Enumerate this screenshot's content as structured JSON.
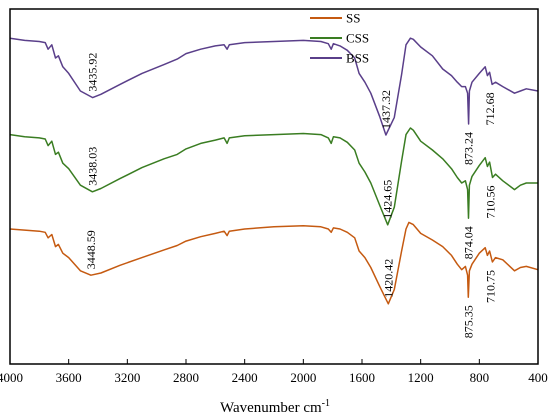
{
  "chart_data": {
    "type": "line",
    "xlabel": "Wavenumber cm",
    "xlabel_sup": "-1",
    "xlim": [
      4000,
      400
    ],
    "x_reversed": true,
    "xticks": [
      4000,
      3600,
      3200,
      2800,
      2400,
      2000,
      1600,
      1200,
      800,
      400
    ],
    "y_axis_shown": false,
    "grid": false,
    "legend_position": "top-center",
    "series": [
      {
        "name": "SS",
        "color": "#c55a11",
        "offset": 0,
        "points": [
          [
            4000,
            0.3
          ],
          [
            3900,
            0.29
          ],
          [
            3800,
            0.28
          ],
          [
            3760,
            0.27
          ],
          [
            3740,
            0.22
          ],
          [
            3715,
            0.25
          ],
          [
            3690,
            0.14
          ],
          [
            3670,
            0.16
          ],
          [
            3640,
            0.08
          ],
          [
            3600,
            0.04
          ],
          [
            3520,
            -0.08
          ],
          [
            3448.59,
            -0.12
          ],
          [
            3380,
            -0.1
          ],
          [
            3250,
            -0.03
          ],
          [
            3100,
            0.04
          ],
          [
            2950,
            0.11
          ],
          [
            2860,
            0.15
          ],
          [
            2800,
            0.19
          ],
          [
            2700,
            0.23
          ],
          [
            2600,
            0.26
          ],
          [
            2540,
            0.28
          ],
          [
            2520,
            0.24
          ],
          [
            2505,
            0.28
          ],
          [
            2400,
            0.3
          ],
          [
            2200,
            0.32
          ],
          [
            2000,
            0.33
          ],
          [
            1880,
            0.32
          ],
          [
            1830,
            0.3
          ],
          [
            1810,
            0.27
          ],
          [
            1795,
            0.31
          ],
          [
            1750,
            0.3
          ],
          [
            1700,
            0.27
          ],
          [
            1650,
            0.22
          ],
          [
            1620,
            0.1
          ],
          [
            1580,
            0.04
          ],
          [
            1540,
            -0.05
          ],
          [
            1480,
            -0.22
          ],
          [
            1420.42,
            -0.38
          ],
          [
            1380,
            -0.25
          ],
          [
            1330,
            0.1
          ],
          [
            1300,
            0.3
          ],
          [
            1280,
            0.36
          ],
          [
            1250,
            0.34
          ],
          [
            1200,
            0.26
          ],
          [
            1120,
            0.2
          ],
          [
            1050,
            0.14
          ],
          [
            990,
            0.06
          ],
          [
            950,
            -0.02
          ],
          [
            920,
            -0.07
          ],
          [
            895,
            -0.04
          ],
          [
            880,
            -0.12
          ],
          [
            875.35,
            -0.32
          ],
          [
            868,
            -0.08
          ],
          [
            850,
            -0.02
          ],
          [
            800,
            0.08
          ],
          [
            760,
            0.13
          ],
          [
            745,
            0.06
          ],
          [
            730,
            0.1
          ],
          [
            710.75,
            0.0
          ],
          [
            690,
            0.04
          ],
          [
            640,
            0.02
          ],
          [
            560,
            -0.08
          ],
          [
            520,
            -0.05
          ],
          [
            480,
            -0.04
          ],
          [
            400,
            -0.07
          ]
        ]
      },
      {
        "name": "CSS",
        "color": "#3a7d22",
        "offset": 1,
        "points": [
          [
            4000,
            0.34
          ],
          [
            3900,
            0.32
          ],
          [
            3800,
            0.31
          ],
          [
            3760,
            0.3
          ],
          [
            3740,
            0.24
          ],
          [
            3715,
            0.28
          ],
          [
            3690,
            0.16
          ],
          [
            3670,
            0.18
          ],
          [
            3640,
            0.08
          ],
          [
            3600,
            0.03
          ],
          [
            3520,
            -0.12
          ],
          [
            3438.03,
            -0.18
          ],
          [
            3380,
            -0.15
          ],
          [
            3250,
            -0.06
          ],
          [
            3100,
            0.04
          ],
          [
            2950,
            0.12
          ],
          [
            2860,
            0.16
          ],
          [
            2800,
            0.21
          ],
          [
            2700,
            0.26
          ],
          [
            2600,
            0.29
          ],
          [
            2540,
            0.31
          ],
          [
            2520,
            0.26
          ],
          [
            2505,
            0.31
          ],
          [
            2400,
            0.33
          ],
          [
            2200,
            0.34
          ],
          [
            2000,
            0.35
          ],
          [
            1880,
            0.34
          ],
          [
            1830,
            0.31
          ],
          [
            1810,
            0.26
          ],
          [
            1795,
            0.32
          ],
          [
            1750,
            0.31
          ],
          [
            1700,
            0.27
          ],
          [
            1650,
            0.2
          ],
          [
            1620,
            0.08
          ],
          [
            1580,
            0.0
          ],
          [
            1540,
            -0.1
          ],
          [
            1480,
            -0.3
          ],
          [
            1424.65,
            -0.48
          ],
          [
            1380,
            -0.32
          ],
          [
            1330,
            0.1
          ],
          [
            1300,
            0.34
          ],
          [
            1270,
            0.4
          ],
          [
            1250,
            0.38
          ],
          [
            1200,
            0.28
          ],
          [
            1120,
            0.2
          ],
          [
            1050,
            0.12
          ],
          [
            990,
            0.03
          ],
          [
            950,
            -0.05
          ],
          [
            920,
            -0.1
          ],
          [
            895,
            -0.08
          ],
          [
            880,
            -0.16
          ],
          [
            874.04,
            -0.42
          ],
          [
            868,
            -0.12
          ],
          [
            850,
            -0.04
          ],
          [
            800,
            0.06
          ],
          [
            760,
            0.13
          ],
          [
            745,
            0.05
          ],
          [
            730,
            0.09
          ],
          [
            710.56,
            -0.05
          ],
          [
            690,
            -0.02
          ],
          [
            640,
            -0.08
          ],
          [
            560,
            -0.16
          ],
          [
            520,
            -0.12
          ],
          [
            480,
            -0.1
          ],
          [
            400,
            -0.1
          ]
        ]
      },
      {
        "name": "BSS",
        "color": "#5a3f8a",
        "offset": 2,
        "points": [
          [
            4000,
            0.38
          ],
          [
            3900,
            0.36
          ],
          [
            3800,
            0.35
          ],
          [
            3760,
            0.34
          ],
          [
            3740,
            0.28
          ],
          [
            3715,
            0.32
          ],
          [
            3690,
            0.2
          ],
          [
            3670,
            0.22
          ],
          [
            3640,
            0.12
          ],
          [
            3600,
            0.06
          ],
          [
            3520,
            -0.1
          ],
          [
            3435.92,
            -0.16
          ],
          [
            3380,
            -0.13
          ],
          [
            3250,
            -0.04
          ],
          [
            3100,
            0.06
          ],
          [
            2950,
            0.14
          ],
          [
            2860,
            0.19
          ],
          [
            2800,
            0.24
          ],
          [
            2700,
            0.28
          ],
          [
            2600,
            0.31
          ],
          [
            2540,
            0.32
          ],
          [
            2520,
            0.28
          ],
          [
            2505,
            0.32
          ],
          [
            2400,
            0.34
          ],
          [
            2200,
            0.35
          ],
          [
            2000,
            0.36
          ],
          [
            1880,
            0.35
          ],
          [
            1830,
            0.33
          ],
          [
            1810,
            0.28
          ],
          [
            1795,
            0.33
          ],
          [
            1750,
            0.31
          ],
          [
            1700,
            0.27
          ],
          [
            1650,
            0.2
          ],
          [
            1620,
            0.06
          ],
          [
            1580,
            -0.02
          ],
          [
            1540,
            -0.12
          ],
          [
            1480,
            -0.33
          ],
          [
            1437.32,
            -0.5
          ],
          [
            1380,
            -0.34
          ],
          [
            1330,
            0.05
          ],
          [
            1300,
            0.32
          ],
          [
            1270,
            0.38
          ],
          [
            1250,
            0.37
          ],
          [
            1200,
            0.3
          ],
          [
            1120,
            0.22
          ],
          [
            1050,
            0.1
          ],
          [
            990,
            0.04
          ],
          [
            950,
            -0.02
          ],
          [
            920,
            -0.06
          ],
          [
            895,
            -0.06
          ],
          [
            880,
            -0.12
          ],
          [
            873.24,
            -0.4
          ],
          [
            868,
            -0.1
          ],
          [
            850,
            -0.02
          ],
          [
            800,
            0.06
          ],
          [
            760,
            0.12
          ],
          [
            745,
            0.04
          ],
          [
            730,
            0.07
          ],
          [
            712.68,
            -0.04
          ],
          [
            690,
            -0.02
          ],
          [
            640,
            -0.06
          ],
          [
            560,
            -0.12
          ],
          [
            520,
            -0.1
          ],
          [
            480,
            -0.08
          ],
          [
            400,
            -0.1
          ]
        ]
      }
    ],
    "annotations": [
      {
        "text": "3448.59",
        "series": "SS",
        "x": 3448.59
      },
      {
        "text": "1420.42",
        "series": "SS",
        "x": 1420.42
      },
      {
        "text": "875.35",
        "series": "SS",
        "x": 875.35
      },
      {
        "text": "710.75",
        "series": "SS",
        "x": 710.75
      },
      {
        "text": "3438.03",
        "series": "CSS",
        "x": 3438.03
      },
      {
        "text": "1424.65",
        "series": "CSS",
        "x": 1424.65
      },
      {
        "text": "874.04",
        "series": "CSS",
        "x": 874.04
      },
      {
        "text": "710.56",
        "series": "CSS",
        "x": 710.56
      },
      {
        "text": "3435.92",
        "series": "BSS",
        "x": 3435.92
      },
      {
        "text": "1437.32",
        "series": "BSS",
        "x": 1437.32
      },
      {
        "text": "873.24",
        "series": "BSS",
        "x": 873.24
      },
      {
        "text": "712.68",
        "series": "BSS",
        "x": 712.68
      }
    ]
  }
}
